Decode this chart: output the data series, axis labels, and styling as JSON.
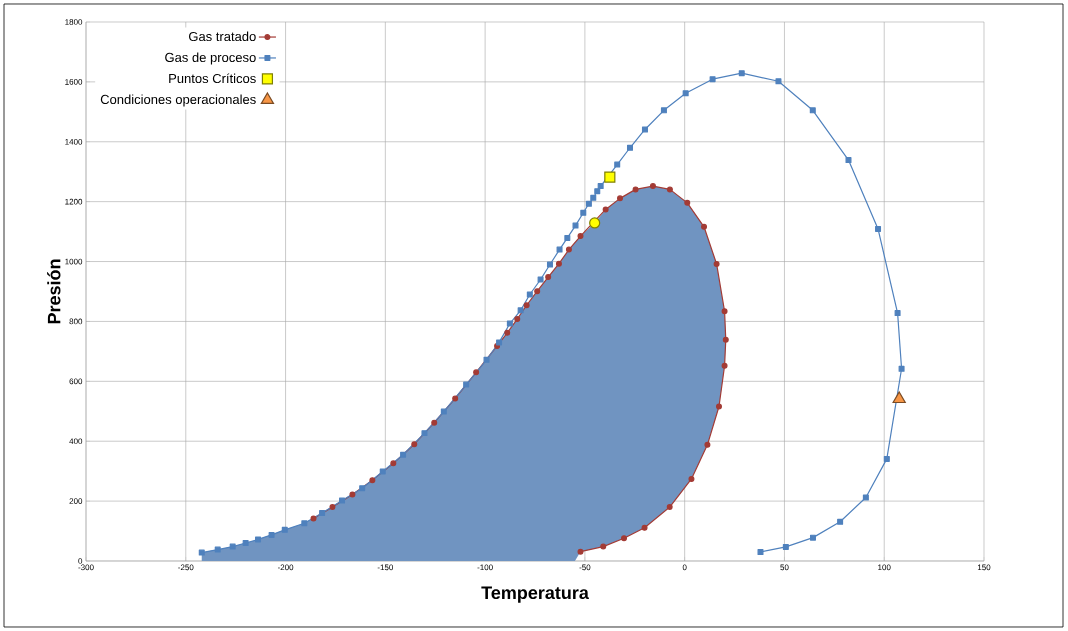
{
  "chart_data": {
    "type": "line",
    "xlabel": "Temperatura",
    "ylabel": "Presión",
    "xlim": [
      -300,
      150
    ],
    "xticks": [
      -300,
      -250,
      -200,
      -150,
      -100,
      -50,
      0,
      50,
      100,
      150
    ],
    "ylim": [
      0,
      1800
    ],
    "yticks": [
      0,
      200,
      400,
      600,
      800,
      1000,
      1200,
      1400,
      1600,
      1800
    ],
    "grid": true,
    "legend": "top left",
    "series": [
      {
        "type": "area",
        "color": "#7094c1",
        "x": [
          -242,
          -242,
          -226.5,
          -213.8,
          -200.4,
          -190.6,
          -181.7,
          -171.7,
          -161.6,
          -151.3,
          -141.1,
          -130.4,
          -120.7,
          -109.5,
          -99.3,
          -88.9,
          -83.9,
          -79.2,
          -73.9,
          -68.4,
          -63,
          -58,
          -52.2,
          -45.1,
          -39.6,
          -32.4,
          -24.6,
          -15.9,
          -7.4,
          1.3,
          9.7,
          16,
          20,
          20.6,
          20,
          17.2,
          11.4,
          3.4,
          -7.5,
          -20.1,
          -30.4,
          -40.8,
          -52.2,
          -55
        ],
        "values": [
          0,
          28,
          48,
          72,
          104,
          126,
          160,
          202,
          243,
          299,
          355,
          427,
          499,
          589,
          672,
          762,
          808,
          854,
          901,
          948,
          993,
          1040,
          1085,
          1129,
          1174,
          1211,
          1241,
          1252,
          1241,
          1196,
          1116,
          992,
          834,
          739,
          652,
          516,
          388,
          274,
          180,
          111,
          76,
          48,
          31,
          0
        ]
      },
      {
        "name": "Gas tratado",
        "color": "#a33b35",
        "marker": "circle",
        "x": [
          -186,
          -176.5,
          -166.5,
          -156.5,
          -146,
          -135.5,
          -125.5,
          -115,
          -104.5,
          -94,
          -88.9,
          -83.9,
          -79.2,
          -73.9,
          -68.4,
          -63,
          -58,
          -52.2,
          -39.6,
          -32.4,
          -24.6,
          -15.9,
          -7.4,
          1.3,
          9.7,
          16,
          20,
          20.6,
          20,
          17.2,
          11.4,
          3.4,
          -7.5,
          -20.1,
          -30.4,
          -40.8,
          -52.2
        ],
        "values": [
          142,
          180,
          222,
          270,
          326,
          390,
          462,
          543,
          630,
          718,
          762,
          808,
          854,
          901,
          948,
          993,
          1040,
          1085,
          1174,
          1211,
          1241,
          1252,
          1241,
          1196,
          1116,
          992,
          834,
          739,
          652,
          516,
          388,
          274,
          180,
          111,
          76,
          48,
          31
        ]
      },
      {
        "name": "Gas  de proceso",
        "color": "#4f81bd",
        "marker": "square",
        "x": [
          -242,
          -234,
          -226.5,
          -220,
          -213.8,
          -207,
          -200.4,
          -190.6,
          -181.7,
          -171.7,
          -161.6,
          -151.3,
          -141.1,
          -130.4,
          -120.7,
          -109.5,
          -99.3,
          -93,
          -87.6,
          -82.2,
          -77.6,
          -72.2,
          -67.5,
          -62.7,
          -58.8,
          -54.7,
          -50.8,
          -48,
          -45.8,
          -43.8,
          -42.1,
          -33.8,
          -27.4,
          -19.9,
          -10.4,
          0.5,
          14,
          28.6,
          47,
          64.2,
          82.1,
          96.9,
          106.7,
          108.7,
          101.3,
          90.8,
          77.9,
          64.3,
          50.7,
          38
        ],
        "values": [
          28,
          38,
          48,
          60,
          72,
          87,
          104,
          126,
          160,
          202,
          243,
          299,
          355,
          427,
          499,
          589,
          672,
          730,
          793,
          837,
          890,
          940,
          990,
          1040,
          1079,
          1120,
          1163,
          1193,
          1213,
          1235,
          1252,
          1324,
          1380,
          1441,
          1505,
          1562,
          1609,
          1629,
          1602,
          1505,
          1339,
          1109,
          828,
          642,
          341,
          212,
          131,
          78,
          47,
          30
        ]
      },
      {
        "type": "scatter",
        "name": "Puntos Críticos",
        "color": "#ffff00",
        "marker": "square",
        "x": [
          -37.5
        ],
        "values": [
          1282
        ]
      },
      {
        "type": "scatter",
        "color": "#ffff00",
        "marker": "circle",
        "x": [
          -45.1
        ],
        "values": [
          1129
        ]
      },
      {
        "type": "scatter",
        "name": "Condiciones operacionales",
        "color": "#f79646",
        "marker": "triangle",
        "x": [
          107.5
        ],
        "values": [
          541
        ]
      }
    ]
  }
}
